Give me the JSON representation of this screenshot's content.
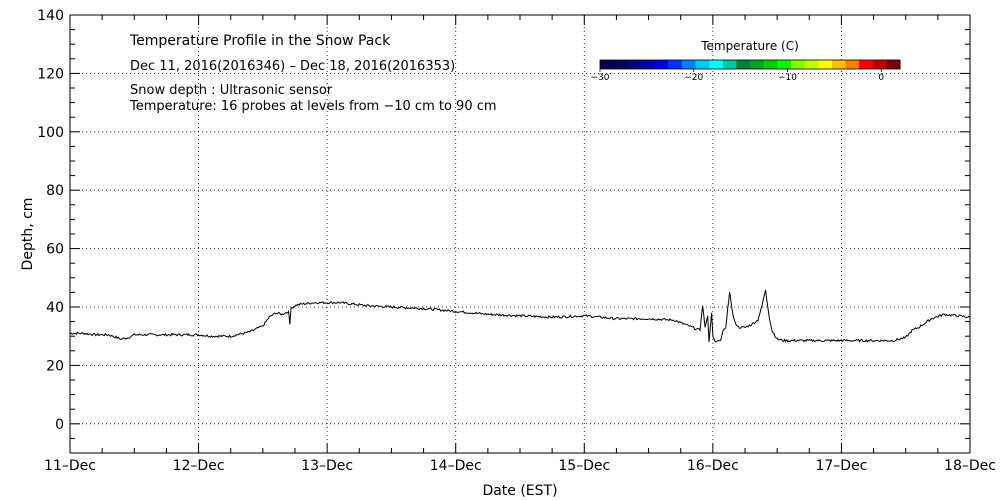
{
  "chart_data": {
    "type": "line",
    "title": "Temperature Profile in the Snow Pack",
    "subtitle": "Dec 11, 2016(2016346) – Dec 18, 2016(2016353)",
    "notes": [
      "Snow depth : Ultrasonic sensor",
      "Temperature: 16 probes at levels from −10 cm to 90 cm"
    ],
    "xlabel": "Date (EST)",
    "ylabel": "Depth, cm",
    "x_tick_labels": [
      "11–Dec",
      "12–Dec",
      "13–Dec",
      "14–Dec",
      "15–Dec",
      "16–Dec",
      "17–Dec",
      "18–Dec"
    ],
    "y_tick_labels": [
      "0",
      "20",
      "40",
      "60",
      "80",
      "100",
      "120",
      "140"
    ],
    "xlim": [
      0,
      7
    ],
    "ylim": [
      -10,
      140
    ],
    "grid": true,
    "colorbar": {
      "title": "Temperature (C)",
      "tick_labels": [
        "−30",
        "−20",
        "−10",
        "0"
      ],
      "range": [
        -30,
        2
      ],
      "colors": [
        "#00004a",
        "#000060",
        "#000080",
        "#0000a8",
        "#0000e0",
        "#0030ff",
        "#0080ff",
        "#00c8ff",
        "#00ffff",
        "#00c8a0",
        "#008040",
        "#00a020",
        "#00d000",
        "#00ff00",
        "#80ff00",
        "#c0ff00",
        "#ffff00",
        "#ffc000",
        "#ff8000",
        "#ff0000",
        "#c00000",
        "#800000"
      ]
    },
    "series": [
      {
        "values_x": [
          0.0,
          0.1,
          0.2,
          0.3,
          0.4,
          0.45,
          0.5,
          0.6,
          0.7,
          0.8,
          0.9,
          1.0,
          1.1,
          1.2,
          1.25,
          1.3,
          1.4,
          1.5,
          1.55,
          1.6,
          1.65,
          1.7,
          1.71,
          1.72,
          1.75,
          1.8,
          1.9,
          2.0,
          2.1,
          2.2,
          2.3,
          2.5,
          2.75,
          3.0,
          3.25,
          3.5,
          3.75,
          4.0,
          4.25,
          4.5,
          4.7,
          4.9,
          4.92,
          4.94,
          4.96,
          4.97,
          4.99,
          5.0,
          5.02,
          5.04,
          5.06,
          5.08,
          5.1,
          5.13,
          5.16,
          5.18,
          5.2,
          5.25,
          5.3,
          5.35,
          5.38,
          5.41,
          5.44,
          5.46,
          5.5,
          5.55,
          5.6,
          5.7,
          5.8,
          5.9,
          6.0,
          6.1,
          6.2,
          6.3,
          6.4,
          6.5,
          6.55,
          6.6,
          6.7,
          6.8,
          6.9,
          7.0
        ],
        "values_y": [
          31,
          31,
          30.5,
          30.5,
          29,
          29.5,
          30.5,
          30.5,
          30.5,
          30.5,
          30.5,
          30.5,
          30,
          30,
          30,
          30.5,
          31.5,
          33.5,
          36.5,
          38,
          37.5,
          38.5,
          34,
          39.5,
          40.5,
          41,
          41.5,
          41.5,
          41.5,
          41,
          40.5,
          40,
          39.5,
          38.5,
          37.5,
          37,
          36.5,
          37,
          36,
          36,
          35.5,
          32,
          40.5,
          33,
          37,
          28,
          38,
          30,
          28,
          28.5,
          28.5,
          32,
          33,
          45,
          36.5,
          34,
          33,
          33,
          34,
          35.5,
          40,
          46,
          36,
          32,
          29,
          28.5,
          28.5,
          28.5,
          28.5,
          28.5,
          28.5,
          28.5,
          28.5,
          28.5,
          28.5,
          29.5,
          32,
          33,
          36,
          37.5,
          37,
          36.5
        ]
      }
    ]
  }
}
